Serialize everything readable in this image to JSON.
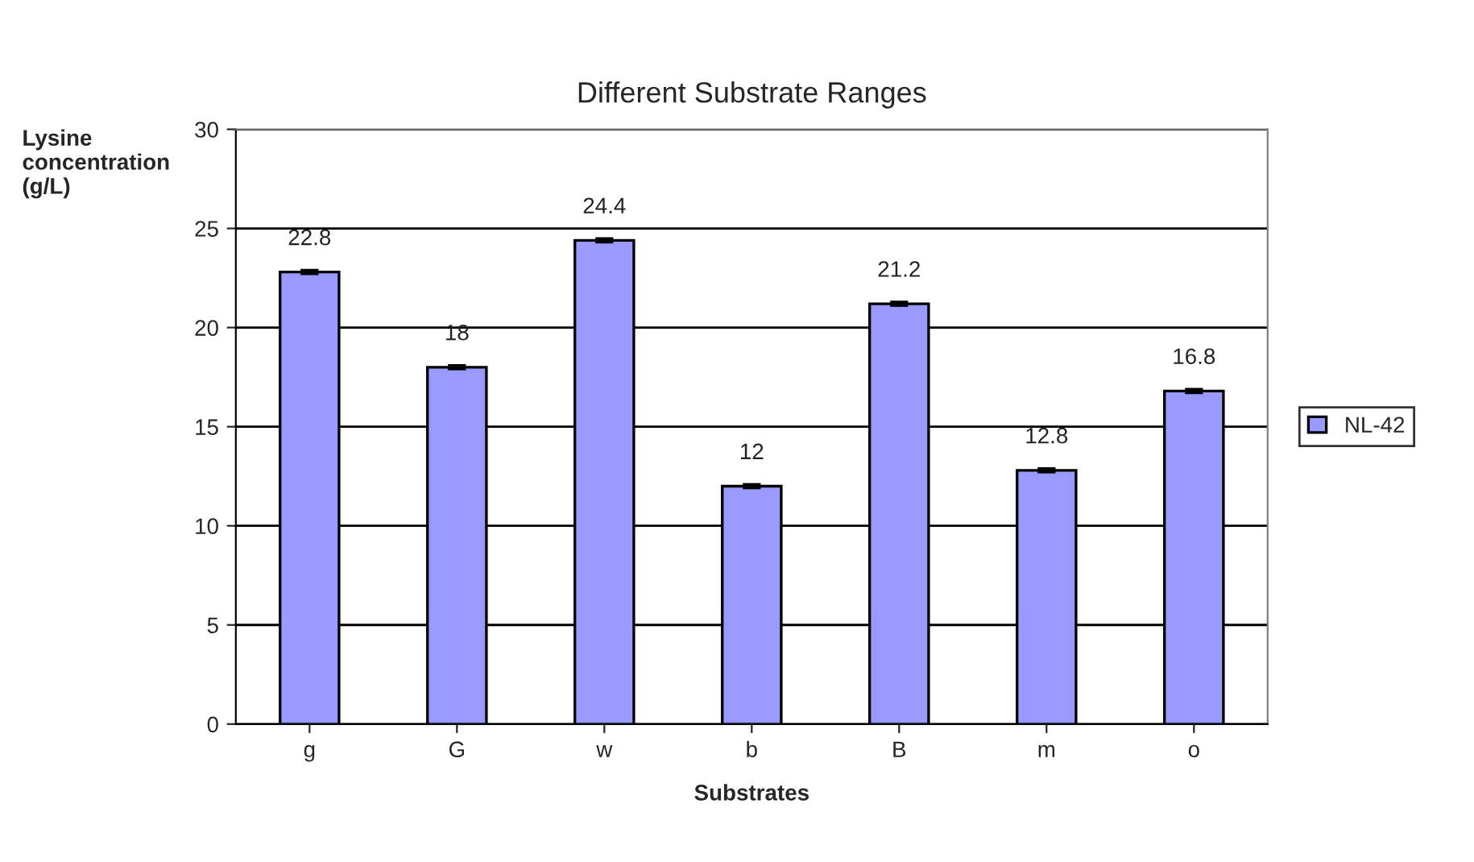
{
  "chart_data": {
    "type": "bar",
    "title": "Different Substrate Ranges",
    "xlabel": "Substrates",
    "ylabel": "Lysine concentration (g/L)",
    "categories": [
      "g",
      "G",
      "w",
      "b",
      "B",
      "m",
      "o"
    ],
    "series": [
      {
        "name": "NL-42",
        "color": "#9999ff",
        "values": [
          22.8,
          18,
          24.4,
          12,
          21.2,
          12.8,
          16.8
        ],
        "errors": [
          0.1,
          0.1,
          0.1,
          0.1,
          0.1,
          0.1,
          0.1
        ]
      }
    ],
    "ylim": [
      0,
      30
    ],
    "yticks": [
      0,
      5,
      10,
      15,
      20,
      25,
      30
    ],
    "grid": "y",
    "legend": "right",
    "data_labels": true
  }
}
